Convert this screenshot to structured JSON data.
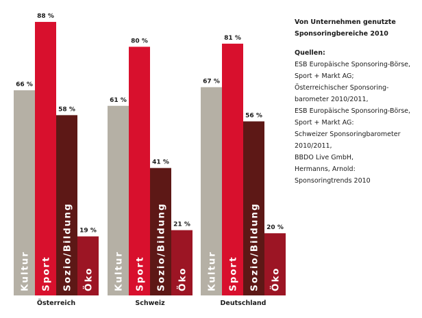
{
  "chart_data": {
    "type": "bar",
    "groups": [
      "Österreich",
      "Schweiz",
      "Deutschland"
    ],
    "categories": [
      "Kultur",
      "Sport",
      "Sozio/Bildung",
      "Öko"
    ],
    "series": [
      {
        "group": "Österreich",
        "values": [
          66,
          88,
          58,
          19
        ],
        "labels": [
          "66 %",
          "88 %",
          "58 %",
          "19 %"
        ]
      },
      {
        "group": "Schweiz",
        "values": [
          61,
          80,
          41,
          21
        ],
        "labels": [
          "61 %",
          "80 %",
          "41 %",
          "21 %"
        ]
      },
      {
        "group": "Deutschland",
        "values": [
          67,
          81,
          56,
          20
        ],
        "labels": [
          "67 %",
          "81 %",
          "56 %",
          "20 %"
        ]
      }
    ],
    "ylim": [
      0,
      100
    ],
    "colors": [
      "#b5b0a5",
      "#d8102d",
      "#5d1816",
      "#9c1524"
    ]
  },
  "side": {
    "title_lines": [
      "Von Unternehmen genutzte",
      "Sponsoringbereiche 2010"
    ],
    "sources_heading": "Quellen:",
    "sources_lines": [
      "ESB Europäische Sponsoring-Börse,",
      "Sport + Markt AG;",
      "Österreichischer Sponsoring-",
      "barometer 2010/2011,",
      "ESB Europäische Sponsoring-Börse,",
      "Sport + Markt AG:",
      "Schweizer Sponsoringbarometer",
      "2010/2011,",
      "BBDO Live GmbH,",
      "Hermanns, Arnold:",
      "Sponsoringtrends 2010"
    ]
  }
}
